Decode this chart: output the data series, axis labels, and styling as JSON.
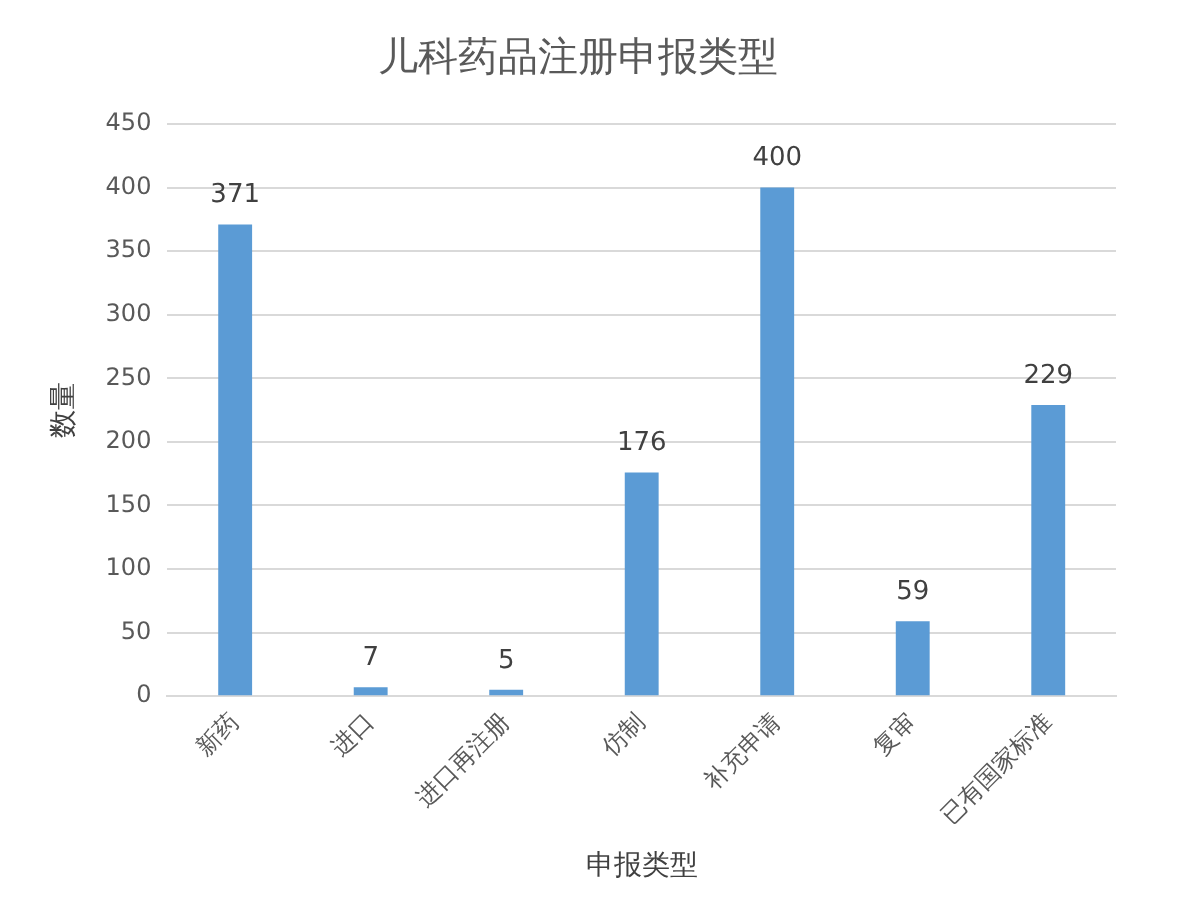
{
  "chart_data": {
    "type": "bar",
    "title": "儿科药品注册申报类型",
    "xlabel": "申报类型",
    "ylabel": "数量",
    "categories": [
      "新药",
      "进口",
      "进口再注册",
      "仿制",
      "补充申请",
      "复审",
      "已有国家标准"
    ],
    "values": [
      371,
      7,
      5,
      176,
      400,
      59,
      229
    ],
    "color": "#5b9bd5",
    "ylim": [
      0,
      450
    ],
    "yticks": [
      0,
      50,
      100,
      150,
      200,
      250,
      300,
      350,
      400,
      450
    ],
    "grid": "y",
    "data_labels": true,
    "legend": false
  }
}
